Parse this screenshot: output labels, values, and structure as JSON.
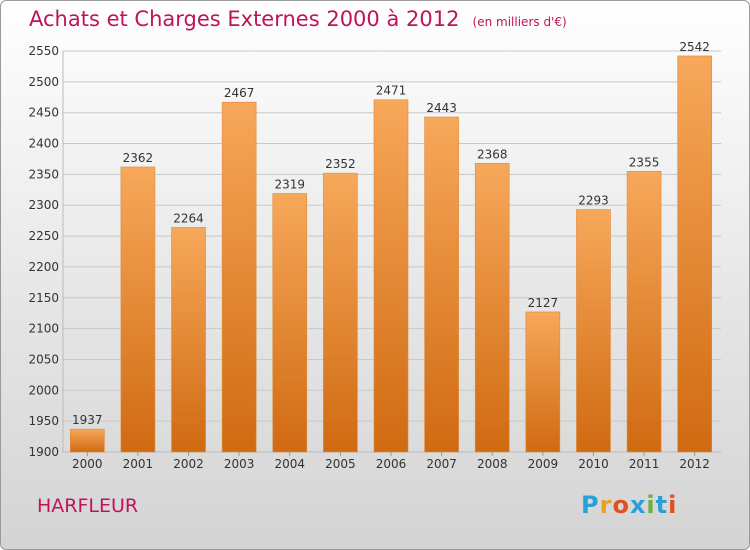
{
  "title": "Achats et Charges Externes 2000 à 2012",
  "unit": "(en milliers d'€)",
  "city": "HARFLEUR",
  "brand": {
    "letters": [
      "P",
      "r",
      "o",
      "x",
      "i",
      "t",
      "i"
    ],
    "colors": [
      "#2aa0d8",
      "#e8a020",
      "#e05020",
      "#2aa0d8",
      "#70b040",
      "#2aa0d8",
      "#e05020"
    ]
  },
  "colors": {
    "bar_top": "#f7a85a",
    "bar_bottom": "#d06a12",
    "title": "#c0145a"
  },
  "chart_data": {
    "type": "bar",
    "categories": [
      "2000",
      "2001",
      "2002",
      "2003",
      "2004",
      "2005",
      "2006",
      "2007",
      "2008",
      "2009",
      "2010",
      "2011",
      "2012"
    ],
    "values": [
      1937,
      2362,
      2264,
      2467,
      2319,
      2352,
      2471,
      2443,
      2368,
      2127,
      2293,
      2355,
      2542
    ],
    "ylim": [
      1900,
      2550
    ],
    "yticks": [
      1900,
      1950,
      2000,
      2050,
      2100,
      2150,
      2200,
      2250,
      2300,
      2350,
      2400,
      2450,
      2500,
      2550
    ],
    "grid": true
  }
}
